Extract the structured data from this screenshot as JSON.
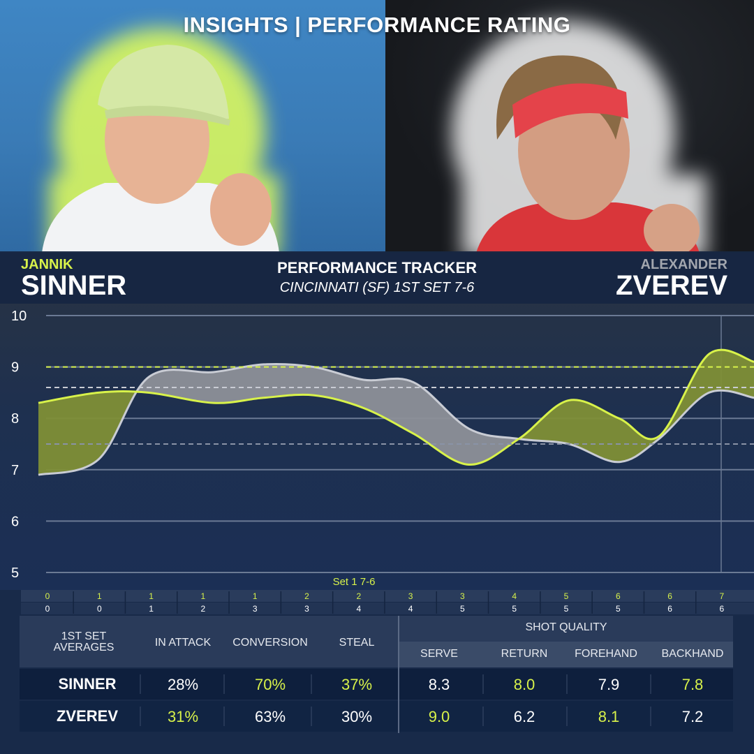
{
  "title": "INSIGHTS | PERFORMANCE RATING",
  "player_left": {
    "first": "JANNIK",
    "last": "SINNER"
  },
  "player_right": {
    "first": "ALEXANDER",
    "last": "ZVEREV"
  },
  "tracker": {
    "title": "PERFORMANCE TRACKER",
    "subtitle": "CINCINNATI (SF) 1ST SET 7-6"
  },
  "colors": {
    "sinner": "#d8f24a",
    "zverev": "#c9ccd4",
    "sinner_fill": "#7f8f36",
    "zverev_fill": "#8d9098",
    "background": "#182a49"
  },
  "chart_data": {
    "type": "line",
    "ylim": [
      5,
      10
    ],
    "yticks": [
      5,
      6,
      7,
      8,
      9,
      10
    ],
    "xlim": [
      0,
      14.3
    ],
    "set_label": "Set 1 7-6",
    "games_top": [
      "0",
      "1",
      "1",
      "1",
      "1",
      "2",
      "2",
      "3",
      "3",
      "4",
      "5",
      "6",
      "6",
      "7"
    ],
    "games_bottom": [
      "0",
      "0",
      "1",
      "2",
      "3",
      "3",
      "4",
      "4",
      "5",
      "5",
      "5",
      "5",
      "6",
      "6"
    ],
    "reference_lines": [
      {
        "name": "sinner-average",
        "value": 9.0,
        "color": "#d8f24a"
      },
      {
        "name": "zverev-average",
        "value": 8.6,
        "color": "#c9ccd4"
      },
      {
        "name": "rating-7.5",
        "value": 7.5,
        "color": "#8a93a6"
      }
    ],
    "series": [
      {
        "name": "SINNER",
        "color": "#d8f24a",
        "x": [
          0,
          1.2,
          2.2,
          3.5,
          4.5,
          5.5,
          6.5,
          7.5,
          8.6,
          9.6,
          10.6,
          11.6,
          12.4,
          13.4,
          14.3
        ],
        "y": [
          8.3,
          8.5,
          8.5,
          8.3,
          8.4,
          8.45,
          8.2,
          7.7,
          7.1,
          7.6,
          8.35,
          8.0,
          7.65,
          9.25,
          9.1
        ]
      },
      {
        "name": "ZVEREV",
        "color": "#c9ccd4",
        "x": [
          0,
          1.2,
          2.2,
          3.5,
          4.5,
          5.5,
          6.5,
          7.5,
          8.6,
          9.6,
          10.6,
          11.6,
          12.4,
          13.4,
          14.3
        ],
        "y": [
          6.9,
          7.2,
          8.8,
          8.9,
          9.05,
          9.0,
          8.75,
          8.7,
          7.8,
          7.6,
          7.5,
          7.15,
          7.6,
          8.5,
          8.4
        ]
      }
    ]
  },
  "stats": {
    "corner_label": "1ST SET AVERAGES",
    "group_header": "SHOT QUALITY",
    "columns": [
      "IN ATTACK",
      "CONVERSION",
      "STEAL",
      "SERVE",
      "RETURN",
      "FOREHAND",
      "BACKHAND"
    ],
    "rows": [
      {
        "label": "SINNER",
        "values": [
          "28%",
          "70%",
          "37%",
          "8.3",
          "8.0",
          "7.9",
          "7.8"
        ],
        "highlight": [
          false,
          true,
          true,
          false,
          true,
          false,
          true
        ]
      },
      {
        "label": "ZVEREV",
        "values": [
          "31%",
          "63%",
          "30%",
          "9.0",
          "6.2",
          "8.1",
          "7.2"
        ],
        "highlight": [
          true,
          false,
          false,
          true,
          false,
          true,
          false
        ]
      }
    ]
  }
}
